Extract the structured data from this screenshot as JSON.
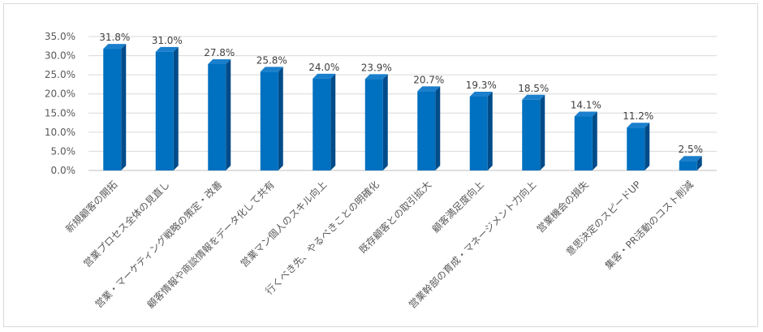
{
  "chart_data": {
    "type": "bar",
    "title": "",
    "xlabel": "",
    "ylabel": "",
    "ylim": [
      0,
      35
    ],
    "ytick_step": 5,
    "ytick_labels": [
      "0.0%",
      "5.0%",
      "10.0%",
      "15.0%",
      "20.0%",
      "25.0%",
      "30.0%",
      "35.0%"
    ],
    "grid": true,
    "legend": "none",
    "style": "3d-column",
    "categories": [
      "新規顧客の開拓",
      "営業プロセス全体の見直し",
      "営業・マーケティング戦略の策定・改善",
      "顧客情報や商談情報をデータ化して共有",
      "営業マン個人のスキル向上",
      "行くべき先、やるべきことの明確化",
      "既存顧客との取引拡大",
      "顧客満足度向上",
      "営業幹部の育成・マネージメント力向上",
      "営業機会の損失",
      "意思決定のスピードUP",
      "集客・PR活動のコスト削減"
    ],
    "values": [
      31.8,
      31.0,
      27.8,
      25.8,
      24.0,
      23.9,
      20.7,
      19.3,
      18.5,
      14.1,
      11.2,
      2.5
    ],
    "value_labels": [
      "31.8%",
      "31.0%",
      "27.8%",
      "25.8%",
      "24.0%",
      "23.9%",
      "20.7%",
      "19.3%",
      "18.5%",
      "14.1%",
      "11.2%",
      "2.5%"
    ],
    "colors": {
      "bar_front": "#0070C0",
      "bar_side": "#004C8A",
      "bar_top": "#1A7FCC",
      "grid": "#D9D9D9",
      "text": "#595959"
    }
  }
}
